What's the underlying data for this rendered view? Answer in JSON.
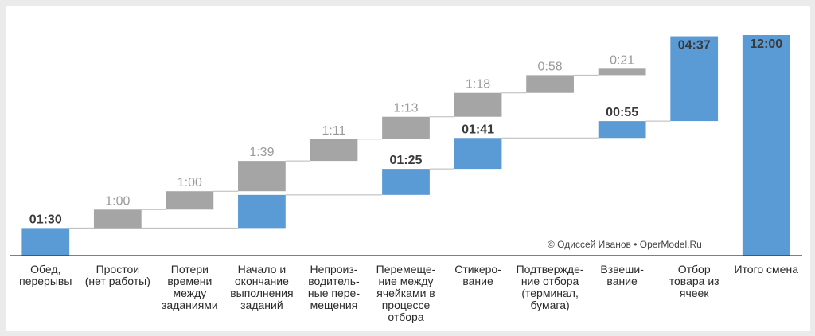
{
  "credit": "© Одиссей Иванов • OperModel.Ru",
  "colors": {
    "blue": "#5b9bd5",
    "gray": "#a5a5a5",
    "connector": "#b8b8b8",
    "axis": "#333333"
  },
  "chart_data": {
    "type": "bar",
    "subtype": "waterfall",
    "unit": "hours:minutes",
    "categories": [
      [
        "Обед,",
        "перерывы"
      ],
      [
        "Простои",
        "(нет работы)"
      ],
      [
        "Потери",
        "времени",
        "между",
        "заданиями"
      ],
      [
        "Начало и",
        "окончание",
        "выполнения",
        "заданий"
      ],
      [
        "Непроиз-",
        "водитель-",
        "ные пере-",
        "мещения"
      ],
      [
        "Перемеще-",
        "ние между",
        "ячейками в",
        "процессе",
        "отбора"
      ],
      [
        "Стикеро-",
        "вание"
      ],
      [
        "Подтвержде-",
        "ние отбора",
        "(терминал,",
        "бумага)"
      ],
      [
        "Взвеши-",
        "вание"
      ],
      [
        "Отбор",
        "товара из",
        "ячеек"
      ],
      [
        "Итого смена"
      ]
    ],
    "series": [
      {
        "name": "",
        "values": [
          "01:30",
          null,
          null,
          "01:48",
          null,
          "01:25",
          "01:41",
          null,
          "00:55",
          "04:37",
          "12:00"
        ],
        "minutes": [
          90,
          0,
          0,
          108,
          0,
          85,
          101,
          0,
          55,
          277,
          720
        ]
      },
      {
        "name": "",
        "values": [
          null,
          "1:00",
          "1:00",
          "1:39",
          "1:11",
          "1:13",
          "1:18",
          "0:58",
          "0:21",
          null,
          null
        ],
        "minutes": [
          0,
          60,
          60,
          99,
          71,
          73,
          78,
          58,
          21,
          0,
          0
        ]
      }
    ],
    "ylim_minutes": [
      0,
      720
    ],
    "grid": false,
    "legend": "none"
  }
}
